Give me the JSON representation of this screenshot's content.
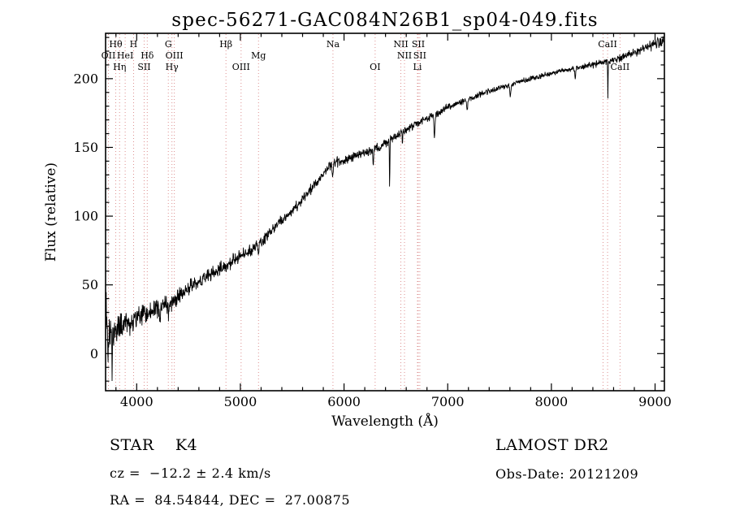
{
  "title": "spec-56271-GAC084N26B1_sp04-049.fits",
  "footer": {
    "left": {
      "line1": "STAR    K4",
      "line2": "cz =  −12.2 ± 2.4 km/s",
      "line3": "RA =  84.54844, DEC =  27.00875"
    },
    "right": {
      "line1": "LAMOST DR2",
      "line2": "Obs-Date: 20121209"
    }
  },
  "chart_data": {
    "type": "line",
    "title": "spec-56271-GAC084N26B1_sp04-049.fits",
    "xlabel": "Wavelength (Å)",
    "ylabel": "Flux (relative)",
    "xlim": [
      3700,
      9090
    ],
    "ylim": [
      -27,
      233
    ],
    "x_ticks": [
      4000,
      5000,
      6000,
      7000,
      8000,
      9000
    ],
    "x_minor_step": 200,
    "y_ticks": [
      0,
      50,
      100,
      150,
      200
    ],
    "y_minor_step": 10,
    "grid": false,
    "legend": "none",
    "line_color": "#000000",
    "marker_line_color": "#dd8f8f",
    "series": [
      {
        "name": "spectrum",
        "anchors_x": [
          3700,
          3750,
          3800,
          3850,
          3900,
          3950,
          4000,
          4100,
          4200,
          4300,
          4400,
          4500,
          4600,
          4700,
          4800,
          4900,
          5000,
          5100,
          5200,
          5300,
          5400,
          5500,
          5600,
          5700,
          5800,
          5900,
          6000,
          6100,
          6200,
          6300,
          6400,
          6500,
          6600,
          6700,
          6800,
          6900,
          7000,
          7100,
          7200,
          7300,
          7400,
          7500,
          7600,
          7700,
          7800,
          7900,
          8000,
          8100,
          8200,
          8300,
          8400,
          8500,
          8600,
          8700,
          8800,
          8900,
          9000,
          9090
        ],
        "anchors_y": [
          12,
          14,
          17,
          20,
          22,
          24,
          26,
          29,
          33,
          36,
          41,
          47,
          52,
          57,
          61,
          66,
          71,
          75,
          81,
          89,
          97,
          104,
          112,
          121,
          131,
          139,
          141,
          143,
          146,
          149,
          153,
          158,
          163,
          167,
          171,
          175,
          179,
          182,
          185,
          188,
          191,
          193,
          196,
          198,
          200,
          202,
          204,
          206,
          207,
          209,
          210,
          212,
          213,
          216,
          219,
          222,
          225,
          228
        ]
      }
    ],
    "noise_envelope": {
      "x": [
        3700,
        3900,
        4200,
        4600,
        5000,
        5500,
        6000,
        6500,
        7000,
        7500,
        8000,
        8500,
        8800,
        9090
      ],
      "amp": [
        16,
        11,
        9,
        7,
        6,
        5,
        4.5,
        4,
        3,
        2.5,
        2.5,
        3,
        4,
        5
      ]
    },
    "noise_seed": 42,
    "absorption_spikes": [
      {
        "x": 3706,
        "depth": -42,
        "width": 3
      },
      {
        "x": 3725,
        "depth": 22,
        "width": 4
      },
      {
        "x": 3762,
        "depth": 26,
        "width": 4
      },
      {
        "x": 3935,
        "depth": 14,
        "width": 5
      },
      {
        "x": 4227,
        "depth": 11,
        "width": 4
      },
      {
        "x": 4310,
        "depth": 8,
        "width": 7
      },
      {
        "x": 5172,
        "depth": 8,
        "width": 6
      },
      {
        "x": 5891,
        "depth": 11,
        "width": 6
      },
      {
        "x": 6282,
        "depth": 12,
        "width": 4
      },
      {
        "x": 6440,
        "depth": 36,
        "width": 3
      },
      {
        "x": 6563,
        "depth": 9,
        "width": 4
      },
      {
        "x": 6872,
        "depth": 16,
        "width": 7
      },
      {
        "x": 7188,
        "depth": 8,
        "width": 7
      },
      {
        "x": 7605,
        "depth": 9,
        "width": 8
      },
      {
        "x": 8230,
        "depth": 7,
        "width": 5
      },
      {
        "x": 8545,
        "depth": 26,
        "width": 3
      }
    ],
    "spectral_lines": [
      {
        "label": "Hθ",
        "wavelength": 3798,
        "row": 0
      },
      {
        "label": "H",
        "wavelength": 3970,
        "row": 0
      },
      {
        "label": "G",
        "wavelength": 4305,
        "row": 0
      },
      {
        "label": "Hβ",
        "wavelength": 4861,
        "row": 0
      },
      {
        "label": "Na",
        "wavelength": 5893,
        "row": 0
      },
      {
        "label": "NII",
        "wavelength": 6548,
        "row": 0
      },
      {
        "label": "SII",
        "wavelength": 6716,
        "row": 0
      },
      {
        "label": "CaII",
        "wavelength": 8542,
        "row": 0
      },
      {
        "label": "OII",
        "wavelength": 3727,
        "row": 1
      },
      {
        "label": "HeI",
        "wavelength": 3889,
        "row": 1
      },
      {
        "label": "Hδ",
        "wavelength": 4102,
        "row": 1
      },
      {
        "label": "OIII",
        "wavelength": 4363,
        "row": 1
      },
      {
        "label": "Mg",
        "wavelength": 5175,
        "row": 1
      },
      {
        "label": "NII",
        "wavelength": 6583,
        "row": 1
      },
      {
        "label": "SII",
        "wavelength": 6731,
        "row": 1
      },
      {
        "label": "Hη",
        "wavelength": 3835,
        "row": 2
      },
      {
        "label": "SII",
        "wavelength": 4072,
        "row": 2
      },
      {
        "label": "Hγ",
        "wavelength": 4340,
        "row": 2
      },
      {
        "label": "OIII",
        "wavelength": 5007,
        "row": 2
      },
      {
        "label": "OI",
        "wavelength": 6300,
        "row": 2
      },
      {
        "label": "Li",
        "wavelength": 6708,
        "row": 2
      },
      {
        "label": "CaII",
        "wavelength": 8662,
        "row": 2
      },
      {
        "label": "",
        "wavelength": 8498,
        "row": null
      }
    ]
  }
}
